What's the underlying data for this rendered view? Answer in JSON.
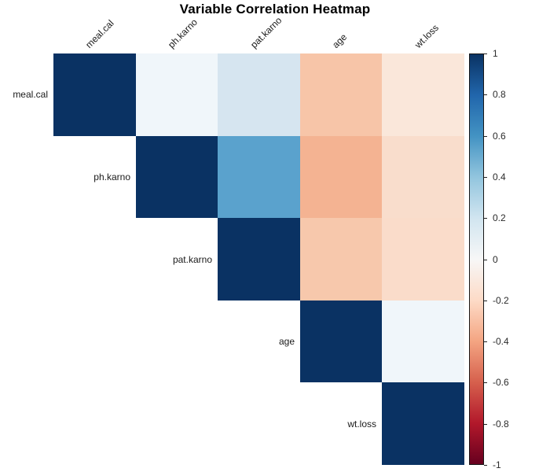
{
  "title": "Variable Correlation Heatmap",
  "colors": {
    "background": "#ffffff",
    "diagonal": "#0a3263",
    "label_text": "#1a1a1a",
    "tick_text": "#2b2b2b"
  },
  "chart_data": {
    "type": "heatmap",
    "subtype": "correlation-upper-triangle",
    "title": "Variable Correlation Heatmap",
    "variables": [
      "meal.cal",
      "ph.karno",
      "pat.karno",
      "age",
      "wt.loss"
    ],
    "matrix": [
      [
        1,
        0.05,
        0.2,
        -0.28,
        -0.11
      ],
      [
        null,
        1,
        0.53,
        -0.36,
        -0.18
      ],
      [
        null,
        null,
        1,
        -0.27,
        -0.19
      ],
      [
        null,
        null,
        null,
        1,
        0.05
      ],
      [
        null,
        null,
        null,
        null,
        1
      ]
    ],
    "cell_colors": [
      [
        "#0a3263",
        "#f0f6fa",
        "#d6e5f0",
        "#f7c5a8",
        "#fae7da"
      ],
      [
        null,
        "#0a3263",
        "#5aa2cd",
        "#f4b392",
        "#f9ddcc"
      ],
      [
        null,
        null,
        "#0a3263",
        "#f7c8ac",
        "#fadcca"
      ],
      [
        null,
        null,
        null,
        "#0a3263",
        "#f0f6fa"
      ],
      [
        null,
        null,
        null,
        null,
        "#0a3263"
      ]
    ],
    "colorbar": {
      "position": "right",
      "min": -1,
      "max": 1,
      "ticks": [
        "1",
        "0.8",
        "0.6",
        "0.4",
        "0.2",
        "0",
        "-0.2",
        "-0.4",
        "-0.6",
        "-0.8",
        "-1"
      ],
      "gradient_stops_top_to_bottom": [
        "#0a3263",
        "#2166ac",
        "#4393c3",
        "#92c5de",
        "#d1e5f0",
        "#f7f7f7",
        "#fddbc7",
        "#f4a582",
        "#d6604d",
        "#b2182b",
        "#67001f"
      ]
    },
    "legend": "none",
    "grid": "off"
  }
}
